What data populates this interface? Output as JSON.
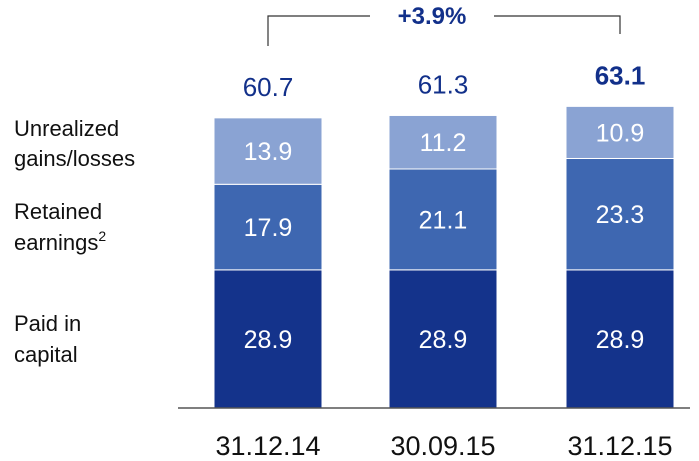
{
  "chart_data": {
    "type": "bar",
    "stacked": true,
    "categories": [
      "31.12.14",
      "30.09.15",
      "31.12.15"
    ],
    "series": [
      {
        "name": "Paid in capital",
        "values": [
          28.9,
          28.9,
          28.9
        ],
        "color": "#14338b"
      },
      {
        "name": "Retained earnings",
        "values": [
          17.9,
          21.1,
          23.3
        ],
        "color": "#3e67b1"
      },
      {
        "name": "Unrealized gains/losses",
        "values": [
          13.9,
          11.2,
          10.9
        ],
        "color": "#8aa3d3"
      }
    ],
    "series_labels": {
      "paid_line1": "Paid in",
      "paid_line2": "capital",
      "retained_line1": "Retained",
      "retained_line2": "earnings",
      "retained_footnote": "2",
      "unrealized_line1": "Unrealized",
      "unrealized_line2": "gains/losses"
    },
    "totals": [
      {
        "label": "60.7",
        "bold": false
      },
      {
        "label": "61.3",
        "bold": false
      },
      {
        "label": "63.1",
        "bold": true
      }
    ],
    "growth": {
      "label": "+3.9%",
      "color": "#12308a"
    },
    "ylim": [
      0,
      70
    ],
    "grid": false,
    "legend": "left"
  }
}
